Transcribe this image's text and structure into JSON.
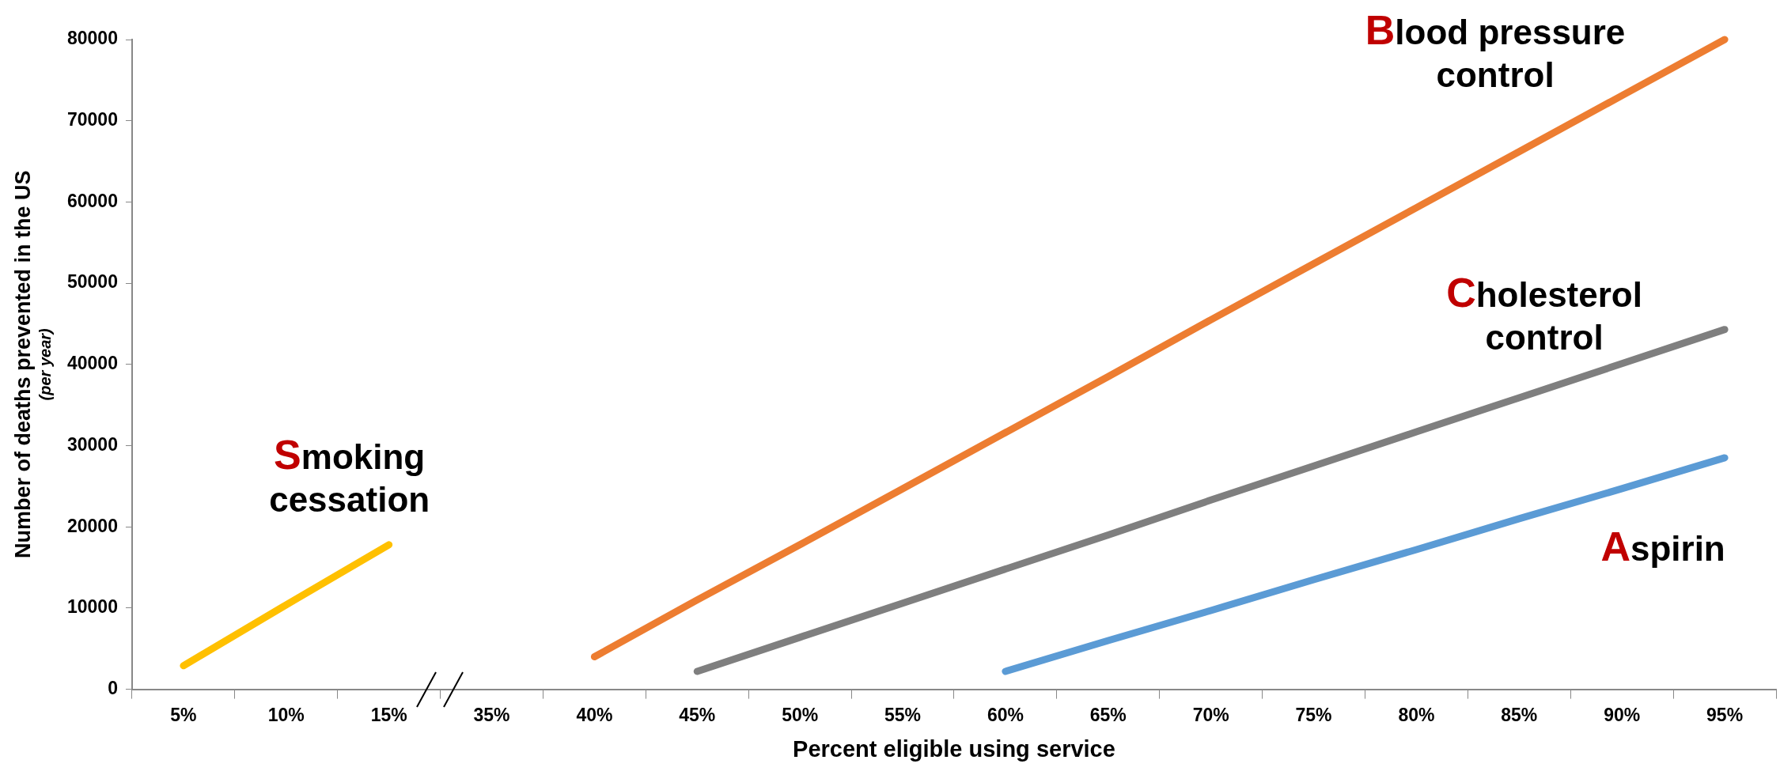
{
  "chart_data": {
    "type": "line",
    "xlabel": "Percent eligible using service",
    "ylabel": "Number of deaths prevented in the US",
    "annotations": [
      "(per year)"
    ],
    "categories": [
      "5%",
      "10%",
      "15%",
      "35%",
      "40%",
      "45%",
      "50%",
      "55%",
      "60%",
      "65%",
      "70%",
      "75%",
      "80%",
      "85%",
      "90%",
      "95%"
    ],
    "ylim": [
      0,
      80000
    ],
    "yticks": [
      0,
      10000,
      20000,
      30000,
      40000,
      50000,
      60000,
      70000,
      80000
    ],
    "grid": false,
    "legend": false,
    "marker": "none",
    "line_style": "solid",
    "series": [
      {
        "name": "Smoking cessation",
        "color": "#ffc000",
        "values": [
          2900,
          10400,
          17800,
          null,
          null,
          null,
          null,
          null,
          null,
          null,
          null,
          null,
          null,
          null,
          null,
          null
        ]
      },
      {
        "name": "Blood pressure control",
        "color": "#ed7d31",
        "values": [
          null,
          null,
          null,
          null,
          4000,
          11000,
          17800,
          24700,
          31600,
          38500,
          45500,
          52400,
          59300,
          66200,
          73100,
          80000
        ]
      },
      {
        "name": "Cholesterol control",
        "color": "#7f7f7f",
        "values": [
          null,
          null,
          null,
          null,
          null,
          2200,
          6400,
          10600,
          14800,
          19000,
          23300,
          27500,
          31700,
          35900,
          40100,
          44300
        ]
      },
      {
        "name": "Aspirin",
        "color": "#5b9bd5",
        "values": [
          null,
          null,
          null,
          null,
          null,
          null,
          null,
          null,
          2200,
          6000,
          9700,
          13500,
          17200,
          21000,
          24700,
          28500
        ]
      }
    ]
  }
}
